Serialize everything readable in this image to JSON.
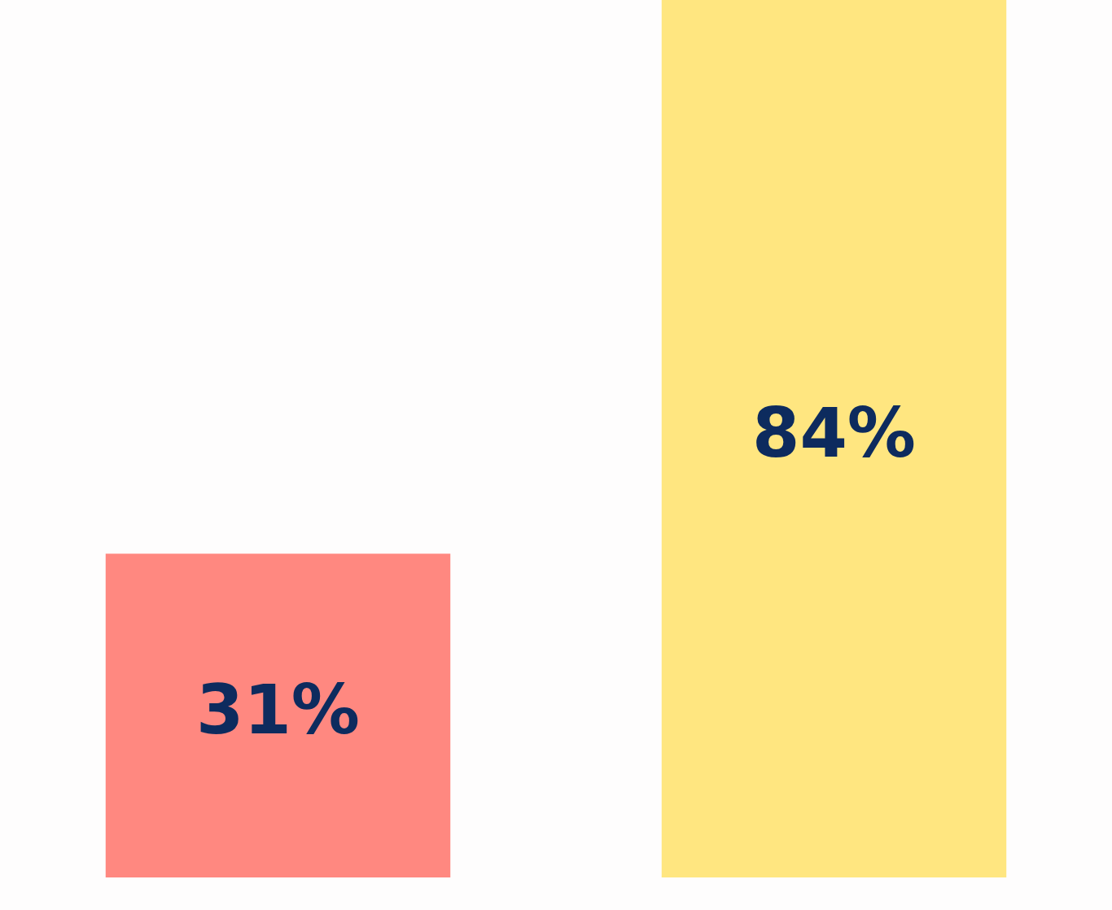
{
  "chart_data": {
    "type": "bar",
    "categories": [
      null,
      null
    ],
    "values": [
      31,
      84
    ],
    "colors": [
      "#ff8880",
      "#ffe680"
    ],
    "value_labels": [
      "31%",
      "84%"
    ],
    "ylim": [
      0,
      84
    ],
    "legend": false
  }
}
